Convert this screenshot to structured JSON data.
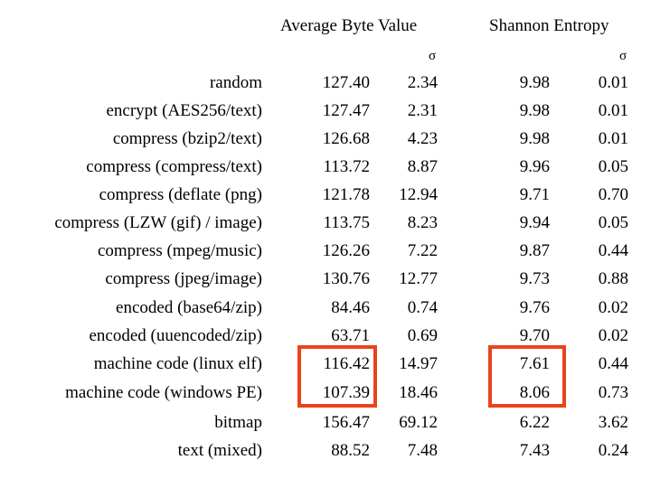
{
  "headers": {
    "avg_byte_value": "Average Byte Value",
    "shannon_entropy": "Shannon Entropy",
    "sigma": "σ"
  },
  "rows": [
    {
      "label": "random",
      "avg": "127.40",
      "avg_sigma": "2.34",
      "entropy": "9.98",
      "entropy_sigma": "0.01"
    },
    {
      "label": "encrypt (AES256/text)",
      "avg": "127.47",
      "avg_sigma": "2.31",
      "entropy": "9.98",
      "entropy_sigma": "0.01"
    },
    {
      "label": "compress (bzip2/text)",
      "avg": "126.68",
      "avg_sigma": "4.23",
      "entropy": "9.98",
      "entropy_sigma": "0.01"
    },
    {
      "label": "compress (compress/text)",
      "avg": "113.72",
      "avg_sigma": "8.87",
      "entropy": "9.96",
      "entropy_sigma": "0.05"
    },
    {
      "label": "compress (deflate (png)",
      "avg": "121.78",
      "avg_sigma": "12.94",
      "entropy": "9.71",
      "entropy_sigma": "0.70"
    },
    {
      "label": "compress (LZW (gif) / image)",
      "avg": "113.75",
      "avg_sigma": "8.23",
      "entropy": "9.94",
      "entropy_sigma": "0.05"
    },
    {
      "label": "compress (mpeg/music)",
      "avg": "126.26",
      "avg_sigma": "7.22",
      "entropy": "9.87",
      "entropy_sigma": "0.44"
    },
    {
      "label": "compress (jpeg/image)",
      "avg": "130.76",
      "avg_sigma": "12.77",
      "entropy": "9.73",
      "entropy_sigma": "0.88"
    },
    {
      "label": "encoded (base64/zip)",
      "avg": "84.46",
      "avg_sigma": "0.74",
      "entropy": "9.76",
      "entropy_sigma": "0.02"
    },
    {
      "label": "encoded (uuencoded/zip)",
      "avg": "63.71",
      "avg_sigma": "0.69",
      "entropy": "9.70",
      "entropy_sigma": "0.02"
    },
    {
      "label": "machine code (linux elf)",
      "avg": "116.42",
      "avg_sigma": "14.97",
      "entropy": "7.61",
      "entropy_sigma": "0.44"
    },
    {
      "label": "machine code (windows PE)",
      "avg": "107.39",
      "avg_sigma": "18.46",
      "entropy": "8.06",
      "entropy_sigma": "0.73"
    },
    {
      "label": "bitmap",
      "avg": "156.47",
      "avg_sigma": "69.12",
      "entropy": "6.22",
      "entropy_sigma": "3.62"
    },
    {
      "label": "text (mixed)",
      "avg": "88.52",
      "avg_sigma": "7.48",
      "entropy": "7.43",
      "entropy_sigma": "0.24"
    }
  ],
  "highlight": {
    "color": "#e8431c",
    "rows": [
      "machine code (linux elf)",
      "machine code (windows PE)"
    ],
    "columns": [
      "avg",
      "entropy"
    ]
  }
}
